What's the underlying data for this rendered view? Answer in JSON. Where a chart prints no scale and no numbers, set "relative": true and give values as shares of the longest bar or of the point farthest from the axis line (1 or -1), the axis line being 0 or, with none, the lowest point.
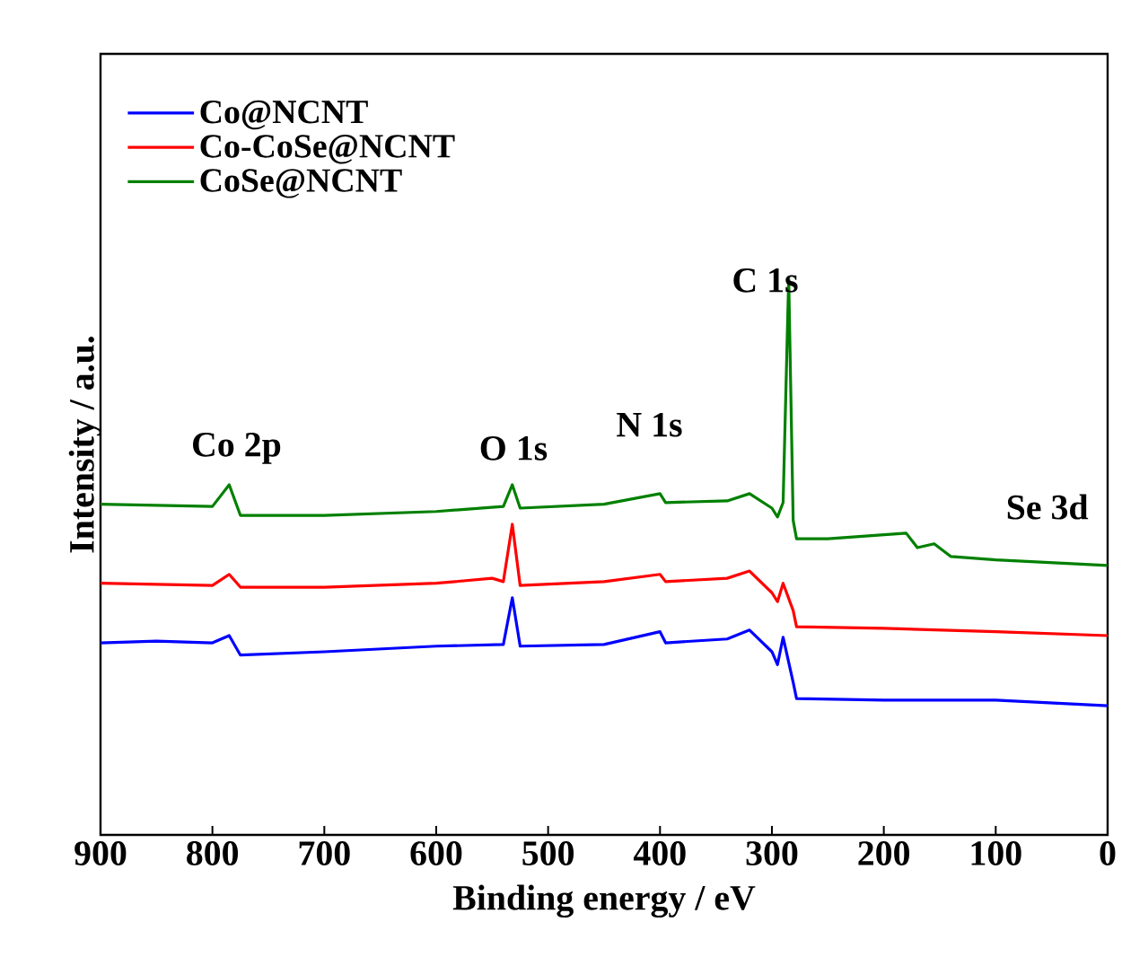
{
  "chart_data": {
    "type": "line",
    "relative": true,
    "xlabel": "Binding energy / eV",
    "ylabel": "Intensity / a.u.",
    "xlim": [
      900,
      0
    ],
    "xticks": [
      900,
      800,
      700,
      600,
      500,
      400,
      300,
      200,
      100,
      0
    ],
    "legend": "top left",
    "grid": false,
    "marker": "none",
    "line_style": "solid",
    "series": [
      {
        "name": "Co@NCNT",
        "color": "#0000ff",
        "x": [
          900,
          850,
          800,
          785,
          775,
          700,
          600,
          540,
          532,
          525,
          450,
          400,
          395,
          340,
          320,
          300,
          295,
          290,
          285,
          281,
          278,
          200,
          100,
          0
        ],
        "values": [
          0.345,
          0.348,
          0.345,
          0.358,
          0.323,
          0.329,
          0.339,
          0.342,
          0.426,
          0.339,
          0.342,
          0.365,
          0.345,
          0.352,
          0.368,
          0.329,
          0.306,
          0.355,
          null,
          0.274,
          0.245,
          0.242,
          0.242,
          0.232
        ]
      },
      {
        "name": "Co-CoSe@NCNT",
        "color": "#ff0000",
        "x": [
          900,
          800,
          785,
          775,
          700,
          600,
          550,
          540,
          532,
          525,
          450,
          400,
          395,
          340,
          320,
          300,
          295,
          290,
          285,
          281,
          278,
          200,
          100,
          0
        ],
        "values": [
          0.452,
          0.448,
          0.468,
          0.445,
          0.445,
          0.452,
          0.461,
          0.455,
          0.558,
          0.448,
          0.455,
          0.468,
          0.455,
          0.461,
          0.474,
          0.435,
          0.419,
          0.452,
          null,
          0.403,
          0.374,
          0.371,
          0.365,
          0.358
        ]
      },
      {
        "name": "CoSe@NCNT",
        "color": "#008000",
        "x": [
          900,
          800,
          785,
          775,
          700,
          600,
          540,
          532,
          525,
          450,
          400,
          395,
          340,
          320,
          300,
          295,
          290,
          285,
          281,
          278,
          250,
          180,
          170,
          155,
          140,
          100,
          0
        ],
        "values": [
          0.594,
          0.59,
          0.629,
          0.574,
          0.574,
          0.581,
          0.59,
          0.629,
          0.587,
          0.594,
          0.613,
          0.597,
          0.6,
          0.613,
          0.587,
          0.571,
          0.597,
          1.0,
          0.565,
          0.532,
          0.532,
          0.542,
          0.516,
          0.523,
          0.5,
          0.494,
          0.484
        ]
      }
    ],
    "annotations": [
      "Co 2p",
      "O 1s",
      "N 1s",
      "C 1s",
      "Se 3d"
    ]
  }
}
